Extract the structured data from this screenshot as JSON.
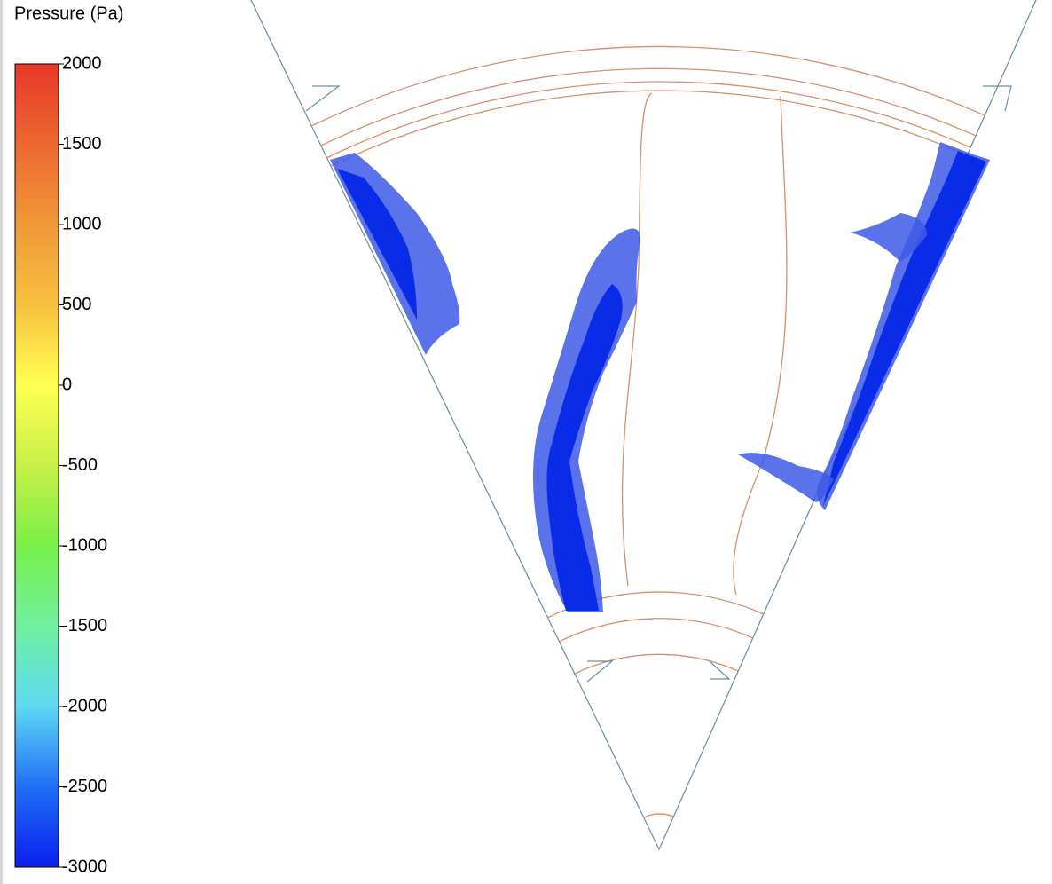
{
  "legend": {
    "title": "Pressure (Pa)",
    "range": [
      -3000,
      2000
    ],
    "ticks": [
      2000,
      1500,
      1000,
      500,
      0,
      -500,
      -1000,
      -1500,
      -2000,
      -2500,
      -3000
    ],
    "colormap": [
      "#0a1ff0",
      "#1f6ff5",
      "#5fd8f5",
      "#6ff0a0",
      "#78f048",
      "#c8f048",
      "#ffff50",
      "#f8c040",
      "#f09838",
      "#ec6830",
      "#e83828"
    ]
  }
}
